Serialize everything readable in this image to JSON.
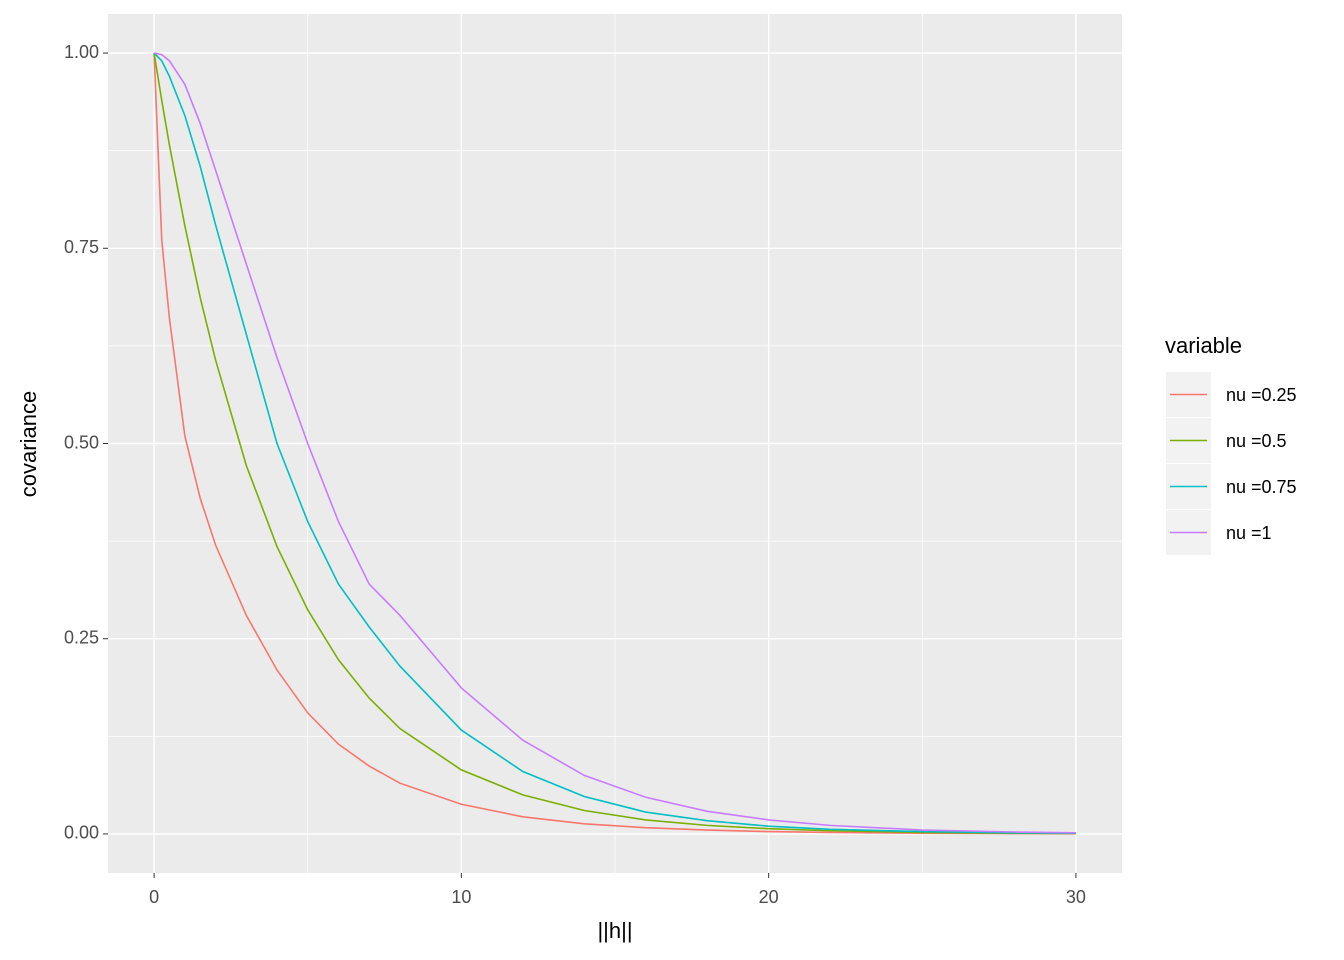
{
  "chart_data": {
    "type": "line",
    "x_label": "||h||",
    "y_label": "covariance",
    "legend_title": "variable",
    "x": [
      0,
      0.25,
      0.5,
      1,
      1.5,
      2,
      3,
      4,
      5,
      6,
      7,
      8,
      10,
      12,
      14,
      16,
      18,
      20,
      22,
      25,
      28,
      30
    ],
    "series": [
      {
        "name": "nu =0.25",
        "color": "#F8766D",
        "values": [
          1,
          0.76,
          0.66,
          0.51,
          0.43,
          0.37,
          0.28,
          0.21,
          0.155,
          0.115,
          0.087,
          0.065,
          0.038,
          0.022,
          0.013,
          0.008,
          0.005,
          0.003,
          0.002,
          0.001,
          0.0005,
          0.0003
        ]
      },
      {
        "name": "nu =0.5",
        "color": "#7CAE00",
        "values": [
          1,
          0.939,
          0.882,
          0.779,
          0.687,
          0.607,
          0.472,
          0.368,
          0.287,
          0.223,
          0.174,
          0.135,
          0.082,
          0.05,
          0.03,
          0.018,
          0.011,
          0.0067,
          0.0041,
          0.0019,
          0.0009,
          0.0006
        ]
      },
      {
        "name": "nu =0.75",
        "color": "#00BFC4",
        "values": [
          1,
          0.99,
          0.97,
          0.92,
          0.855,
          0.78,
          0.64,
          0.5,
          0.4,
          0.32,
          0.265,
          0.215,
          0.133,
          0.08,
          0.048,
          0.028,
          0.017,
          0.01,
          0.006,
          0.003,
          0.0015,
          0.001
        ]
      },
      {
        "name": "nu =1",
        "color": "#C77CFF",
        "values": [
          1,
          0.998,
          0.99,
          0.96,
          0.91,
          0.85,
          0.73,
          0.61,
          0.5,
          0.4,
          0.32,
          0.28,
          0.187,
          0.12,
          0.075,
          0.047,
          0.029,
          0.018,
          0.011,
          0.005,
          0.0025,
          0.0015
        ]
      }
    ],
    "xlim": [
      -1.5,
      31.5
    ],
    "xticks": [
      0,
      10,
      20,
      30
    ],
    "ylim": [
      -0.05,
      1.05
    ],
    "yticks": [
      {
        "value": 0,
        "label": "0.00"
      },
      {
        "value": 0.25,
        "label": "0.25"
      },
      {
        "value": 0.5,
        "label": "0.50"
      },
      {
        "value": 0.75,
        "label": "0.75"
      },
      {
        "value": 1,
        "label": "1.00"
      }
    ],
    "grid": true,
    "legend": "right"
  }
}
